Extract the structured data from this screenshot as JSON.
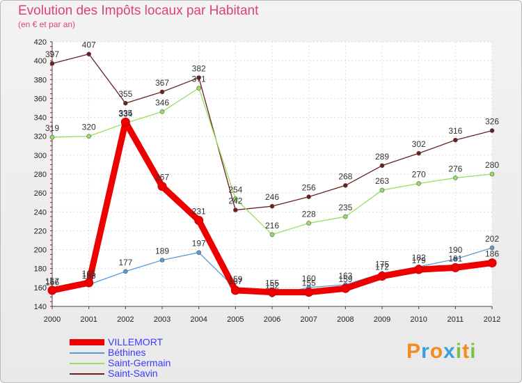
{
  "chart_data": {
    "type": "line",
    "title": "Evolution des Impôts locaux par Habitant",
    "subtitle": "(en € et par an)",
    "x": [
      "2000",
      "2001",
      "2002",
      "2003",
      "2004",
      "2005",
      "2006",
      "2007",
      "2008",
      "2009",
      "2010",
      "2011",
      "2012"
    ],
    "ylim": [
      140,
      420
    ],
    "yticks": [
      140,
      160,
      180,
      200,
      220,
      240,
      260,
      280,
      300,
      320,
      340,
      360,
      380,
      400,
      420
    ],
    "grid": true,
    "legend_position": "bottom-left",
    "series": [
      {
        "name": "VILLEMORT",
        "color": "#ee0000",
        "values": [
          157,
          165,
          335,
          267,
          231,
          157,
          155,
          155,
          159,
          172,
          179,
          181,
          186
        ]
      },
      {
        "name": "Béthines",
        "color": "#5b9bd5",
        "values": [
          156,
          163,
          177,
          189,
          197,
          159,
          152,
          160,
          163,
          175,
          182,
          190,
          202
        ]
      },
      {
        "name": "Saint-Germain",
        "color": "#99dd66",
        "values": [
          319,
          320,
          334,
          346,
          371,
          254,
          216,
          228,
          235,
          263,
          270,
          276,
          280
        ]
      },
      {
        "name": "Saint-Savin",
        "color": "#6b1f1f",
        "values": [
          397,
          407,
          355,
          367,
          382,
          242,
          246,
          256,
          268,
          289,
          302,
          316,
          326
        ]
      }
    ]
  },
  "logo": {
    "letters": [
      "P",
      "r",
      "o",
      "x",
      "i",
      "t",
      "i"
    ],
    "colors": [
      "#f28c1e",
      "#3aa0dc",
      "#f28c1e",
      "#3aa0dc",
      "#7cc242",
      "#f28c1e",
      "#7cc242"
    ]
  }
}
